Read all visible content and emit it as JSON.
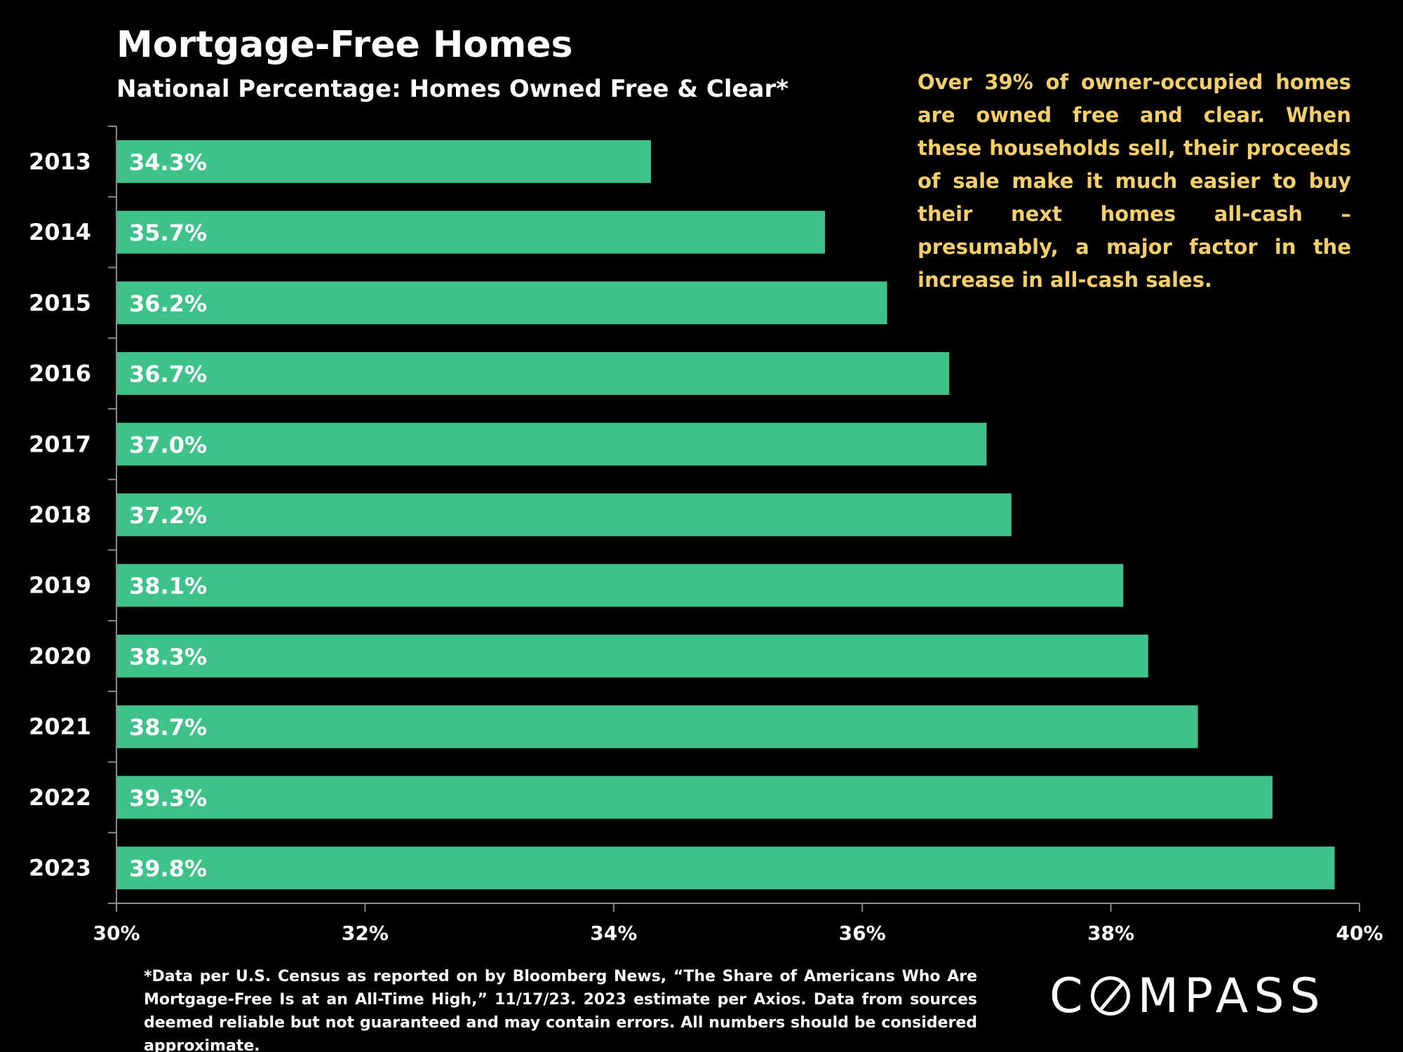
{
  "chart_data": {
    "type": "bar",
    "orientation": "horizontal",
    "title": "Mortgage-Free Homes",
    "subtitle": "National Percentage: Homes Owned Free & Clear*",
    "categories": [
      "2013",
      "2014",
      "2015",
      "2016",
      "2017",
      "2018",
      "2019",
      "2020",
      "2021",
      "2022",
      "2023"
    ],
    "values": [
      34.3,
      35.7,
      36.2,
      36.7,
      37.0,
      37.2,
      38.1,
      38.3,
      38.7,
      39.3,
      39.8
    ],
    "data_labels": [
      "34.3%",
      "35.7%",
      "36.2%",
      "36.7%",
      "37.0%",
      "37.2%",
      "38.1%",
      "38.3%",
      "38.7%",
      "39.3%",
      "39.8%"
    ],
    "xlim": [
      30,
      40
    ],
    "x_ticks": [
      30,
      32,
      34,
      36,
      38,
      40
    ],
    "x_tick_labels": [
      "30%",
      "32%",
      "34%",
      "36%",
      "38%",
      "40%"
    ],
    "xlabel": "",
    "ylabel": "",
    "grid": false,
    "legend": "none",
    "bar_color": "#3fc28a",
    "background_color": "#000000",
    "axis_color": "#8a8a8a"
  },
  "callout": {
    "text": "Over 39% of owner-occupied homes are owned free and clear. When these households sell, their proceeds of sale make it much easier to buy their next homes all-cash – presumably, a major factor in the increase in all-cash sales.",
    "color": "#f6cf6b"
  },
  "footnote": {
    "text": "*Data per U.S. Census as reported on by Bloomberg News, “The Share of Americans Who Are Mortgage-Free Is at an All-Time High,” 11/17/23. 2023 estimate per Axios. Data from sources deemed reliable but not guaranteed and may contain errors. All numbers should be considered approximate."
  },
  "logo": {
    "text_prefix": "C",
    "text_suffix": "MPASS",
    "name": "COMPASS"
  }
}
